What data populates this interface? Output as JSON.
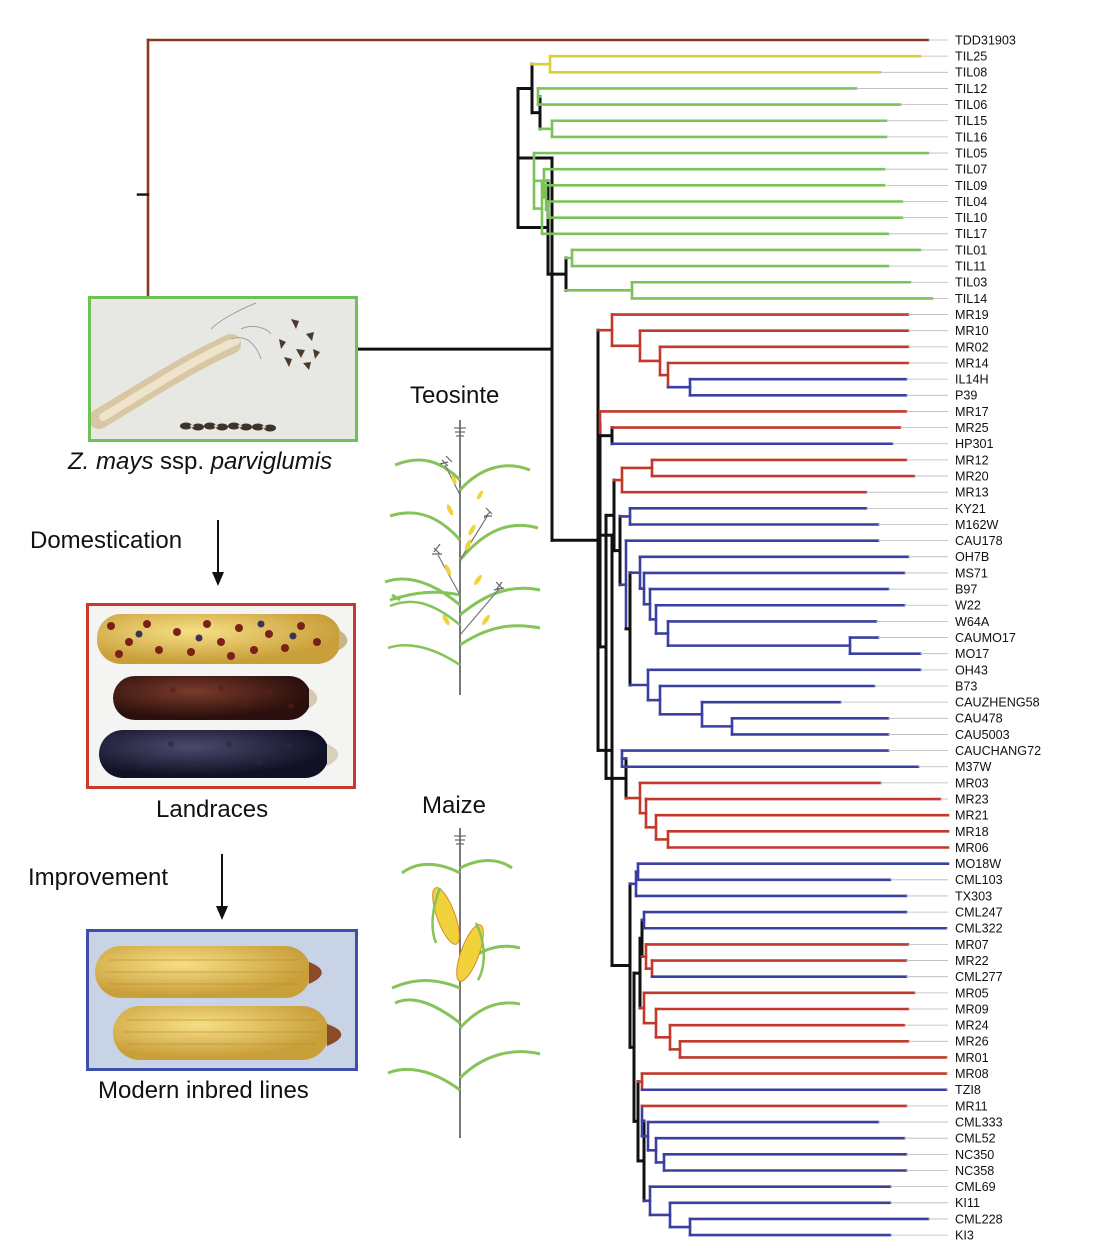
{
  "stages": {
    "wild_name_italic_1": "Z. mays",
    "wild_name_plain": " ssp. ",
    "wild_name_italic_2": "parviglumis",
    "step1": "Domestication",
    "landraces": "Landraces",
    "step2": "Improvement",
    "modern": "Modern inbred lines",
    "teosinte": "Teosinte",
    "maize": "Maize"
  },
  "tree": {
    "colors": {
      "outgroup": "#8b3a1e",
      "yellow": "#d9cf3a",
      "green": "#7cc25a",
      "red": "#c0392b",
      "blue": "#3a3fa0",
      "backbone": "#111111",
      "leader": "#b8b8b8"
    },
    "tips": [
      {
        "name": "TDD31903",
        "group": "outgroup"
      },
      {
        "name": "TIL25",
        "group": "yellow"
      },
      {
        "name": "TIL08",
        "group": "yellow"
      },
      {
        "name": "TIL12",
        "group": "green"
      },
      {
        "name": "TIL06",
        "group": "green"
      },
      {
        "name": "TIL15",
        "group": "green"
      },
      {
        "name": "TIL16",
        "group": "green"
      },
      {
        "name": "TIL05",
        "group": "green"
      },
      {
        "name": "TIL07",
        "group": "green"
      },
      {
        "name": "TIL09",
        "group": "green"
      },
      {
        "name": "TIL04",
        "group": "green"
      },
      {
        "name": "TIL10",
        "group": "green"
      },
      {
        "name": "TIL17",
        "group": "green"
      },
      {
        "name": "TIL01",
        "group": "green"
      },
      {
        "name": "TIL11",
        "group": "green"
      },
      {
        "name": "TIL03",
        "group": "green"
      },
      {
        "name": "TIL14",
        "group": "green"
      },
      {
        "name": "MR19",
        "group": "red"
      },
      {
        "name": "MR10",
        "group": "red"
      },
      {
        "name": "MR02",
        "group": "red"
      },
      {
        "name": "MR14",
        "group": "red"
      },
      {
        "name": "IL14H",
        "group": "blue"
      },
      {
        "name": "P39",
        "group": "blue"
      },
      {
        "name": "MR17",
        "group": "red"
      },
      {
        "name": "MR25",
        "group": "red"
      },
      {
        "name": "HP301",
        "group": "blue"
      },
      {
        "name": "MR12",
        "group": "red"
      },
      {
        "name": "MR20",
        "group": "red"
      },
      {
        "name": "MR13",
        "group": "red"
      },
      {
        "name": "KY21",
        "group": "blue"
      },
      {
        "name": "M162W",
        "group": "blue"
      },
      {
        "name": "CAU178",
        "group": "blue"
      },
      {
        "name": "OH7B",
        "group": "blue"
      },
      {
        "name": "MS71",
        "group": "blue"
      },
      {
        "name": "B97",
        "group": "blue"
      },
      {
        "name": "W22",
        "group": "blue"
      },
      {
        "name": "W64A",
        "group": "blue"
      },
      {
        "name": "CAUMO17",
        "group": "blue"
      },
      {
        "name": "MO17",
        "group": "blue"
      },
      {
        "name": "OH43",
        "group": "blue"
      },
      {
        "name": "B73",
        "group": "blue"
      },
      {
        "name": "CAUZHENG58",
        "group": "blue"
      },
      {
        "name": "CAU478",
        "group": "blue"
      },
      {
        "name": "CAU5003",
        "group": "blue"
      },
      {
        "name": "CAUCHANG72",
        "group": "blue"
      },
      {
        "name": "M37W",
        "group": "blue"
      },
      {
        "name": "MR03",
        "group": "red"
      },
      {
        "name": "MR23",
        "group": "red"
      },
      {
        "name": "MR21",
        "group": "red"
      },
      {
        "name": "MR18",
        "group": "red"
      },
      {
        "name": "MR06",
        "group": "red"
      },
      {
        "name": "MO18W",
        "group": "blue"
      },
      {
        "name": "CML103",
        "group": "blue"
      },
      {
        "name": "TX303",
        "group": "blue"
      },
      {
        "name": "CML247",
        "group": "blue"
      },
      {
        "name": "CML322",
        "group": "blue"
      },
      {
        "name": "MR07",
        "group": "red"
      },
      {
        "name": "MR22",
        "group": "red"
      },
      {
        "name": "CML277",
        "group": "blue"
      },
      {
        "name": "MR05",
        "group": "red"
      },
      {
        "name": "MR09",
        "group": "red"
      },
      {
        "name": "MR24",
        "group": "red"
      },
      {
        "name": "MR26",
        "group": "red"
      },
      {
        "name": "MR01",
        "group": "red"
      },
      {
        "name": "MR08",
        "group": "red"
      },
      {
        "name": "TZI8",
        "group": "blue"
      },
      {
        "name": "MR11",
        "group": "red"
      },
      {
        "name": "CML333",
        "group": "blue"
      },
      {
        "name": "CML52",
        "group": "blue"
      },
      {
        "name": "NC350",
        "group": "blue"
      },
      {
        "name": "NC358",
        "group": "blue"
      },
      {
        "name": "CML69",
        "group": "blue"
      },
      {
        "name": "KI11",
        "group": "blue"
      },
      {
        "name": "CML228",
        "group": "blue"
      },
      {
        "name": "KI3",
        "group": "blue"
      }
    ]
  }
}
